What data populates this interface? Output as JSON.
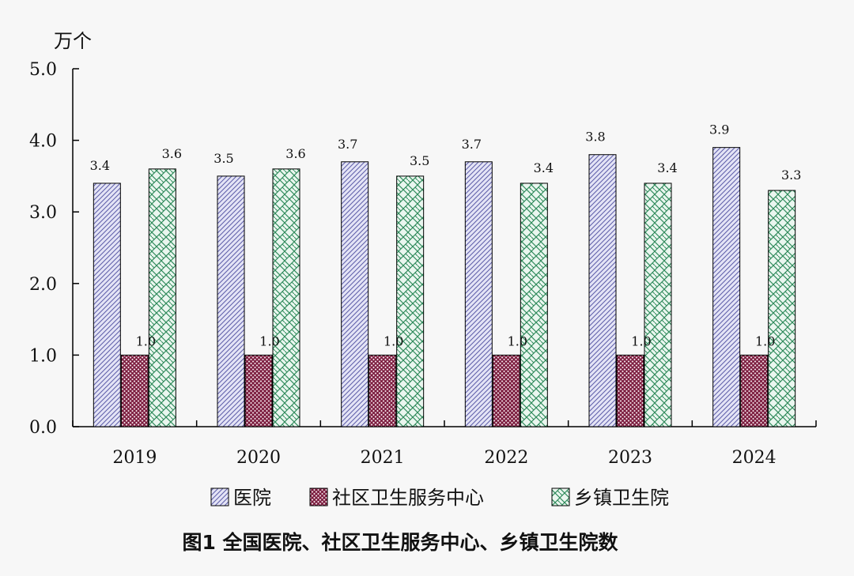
{
  "chart_data": {
    "type": "bar",
    "title": "图1  全国医院、社区卫生服务中心、乡镇卫生院数",
    "ylabel": "万个",
    "xlabel": "",
    "ylim": [
      0,
      5
    ],
    "yticks": [
      "0.0",
      "1.0",
      "2.0",
      "3.0",
      "4.0",
      "5.0"
    ],
    "categories": [
      "2019",
      "2020",
      "2021",
      "2022",
      "2023",
      "2024"
    ],
    "legend_position": "bottom",
    "grid": false,
    "series": [
      {
        "name": "医院",
        "values": [
          3.4,
          3.5,
          3.7,
          3.7,
          3.8,
          3.9
        ],
        "labels": [
          "3.4",
          "3.5",
          "3.7",
          "3.7",
          "3.8",
          "3.9"
        ],
        "color": "#c8c8ee",
        "pattern": "diagonal"
      },
      {
        "name": "社区卫生服务中心",
        "values": [
          1.0,
          1.0,
          1.0,
          1.0,
          1.0,
          1.0
        ],
        "labels": [
          "1.0",
          "1.0",
          "1.0",
          "1.0",
          "1.0",
          "1.0"
        ],
        "color": "#7a1a3c",
        "pattern": "crosshatch"
      },
      {
        "name": "乡镇卫生院",
        "values": [
          3.6,
          3.6,
          3.5,
          3.4,
          3.4,
          3.3
        ],
        "labels": [
          "3.6",
          "3.6",
          "3.5",
          "3.4",
          "3.4",
          "3.3"
        ],
        "color": "#2e8a5a",
        "pattern": "lattice"
      }
    ]
  }
}
